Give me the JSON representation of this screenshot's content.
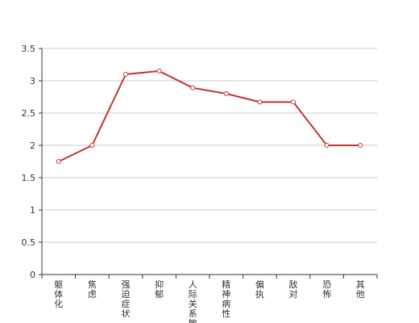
{
  "chart_data": {
    "type": "line",
    "categories": [
      "躯体化",
      "焦虑",
      "强迫症状",
      "抑郁",
      "人际关系敏感",
      "精神病性",
      "偏执",
      "敌对",
      "恐怖",
      "其他"
    ],
    "series": [
      {
        "values": [
          1.75,
          2.0,
          3.1,
          3.15,
          2.89,
          2.8,
          2.67,
          2.67,
          2.0,
          2.0
        ]
      }
    ],
    "ylim": [
      0,
      3.5
    ],
    "yticks": [
      "0",
      "0.5",
      "1",
      "1.5",
      "2",
      "2.5",
      "3",
      "3.5"
    ],
    "title": "",
    "xlabel": "",
    "ylabel": "",
    "grid": true,
    "colors": {
      "line": "#c23531",
      "grid": "#cccccc",
      "axis": "#333333"
    }
  }
}
